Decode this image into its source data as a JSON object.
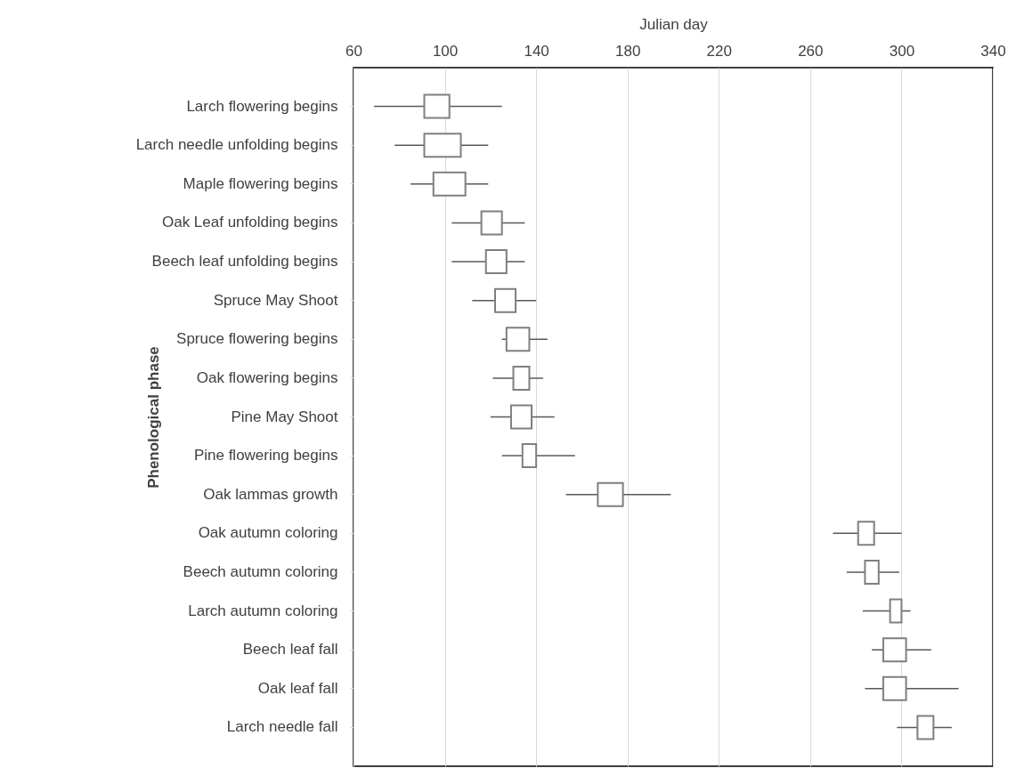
{
  "chart_data": {
    "type": "box",
    "orientation": "horizontal",
    "xlabel": "Julian day",
    "ylabel": "Phenological phase",
    "categories": [
      "Larch  flowering begins",
      "Larch needle unfolding begins",
      "Maple flowering begins",
      "Oak Leaf unfolding begins",
      "Beech leaf unfolding begins",
      "Spruce May Shoot",
      "Spruce flowering begins",
      "Oak flowering begins",
      "Pine May Shoot",
      "Pine flowering begins",
      "Oak lammas growth",
      "Oak autumn coloring",
      "Beech autumn coloring",
      "Larch autumn coloring",
      "Beech leaf fall",
      "Oak leaf fall",
      "Larch needle fall"
    ],
    "boxes": [
      {
        "low": 69,
        "q1": 91,
        "q3": 102,
        "high": 125
      },
      {
        "low": 78,
        "q1": 91,
        "q3": 107,
        "high": 119
      },
      {
        "low": 85,
        "q1": 95,
        "q3": 109,
        "high": 119
      },
      {
        "low": 103,
        "q1": 116,
        "q3": 125,
        "high": 135
      },
      {
        "low": 103,
        "q1": 118,
        "q3": 127,
        "high": 135
      },
      {
        "low": 112,
        "q1": 122,
        "q3": 131,
        "high": 140
      },
      {
        "low": 125,
        "q1": 127,
        "q3": 137,
        "high": 145
      },
      {
        "low": 121,
        "q1": 130,
        "q3": 137,
        "high": 143
      },
      {
        "low": 120,
        "q1": 129,
        "q3": 138,
        "high": 148
      },
      {
        "low": 125,
        "q1": 134,
        "q3": 140,
        "high": 157
      },
      {
        "low": 153,
        "q1": 167,
        "q3": 178,
        "high": 199
      },
      {
        "low": 270,
        "q1": 281,
        "q3": 288,
        "high": 300
      },
      {
        "low": 276,
        "q1": 284,
        "q3": 290,
        "high": 299
      },
      {
        "low": 283,
        "q1": 295,
        "q3": 300,
        "high": 304
      },
      {
        "low": 287,
        "q1": 292,
        "q3": 302,
        "high": 313
      },
      {
        "low": 284,
        "q1": 292,
        "q3": 302,
        "high": 325
      },
      {
        "low": 298,
        "q1": 307,
        "q3": 314,
        "high": 322
      }
    ],
    "color": "#ffffff",
    "xlim": [
      60,
      340
    ],
    "xticks": [
      60,
      100,
      140,
      180,
      220,
      260,
      300,
      340
    ],
    "grid": "x"
  }
}
